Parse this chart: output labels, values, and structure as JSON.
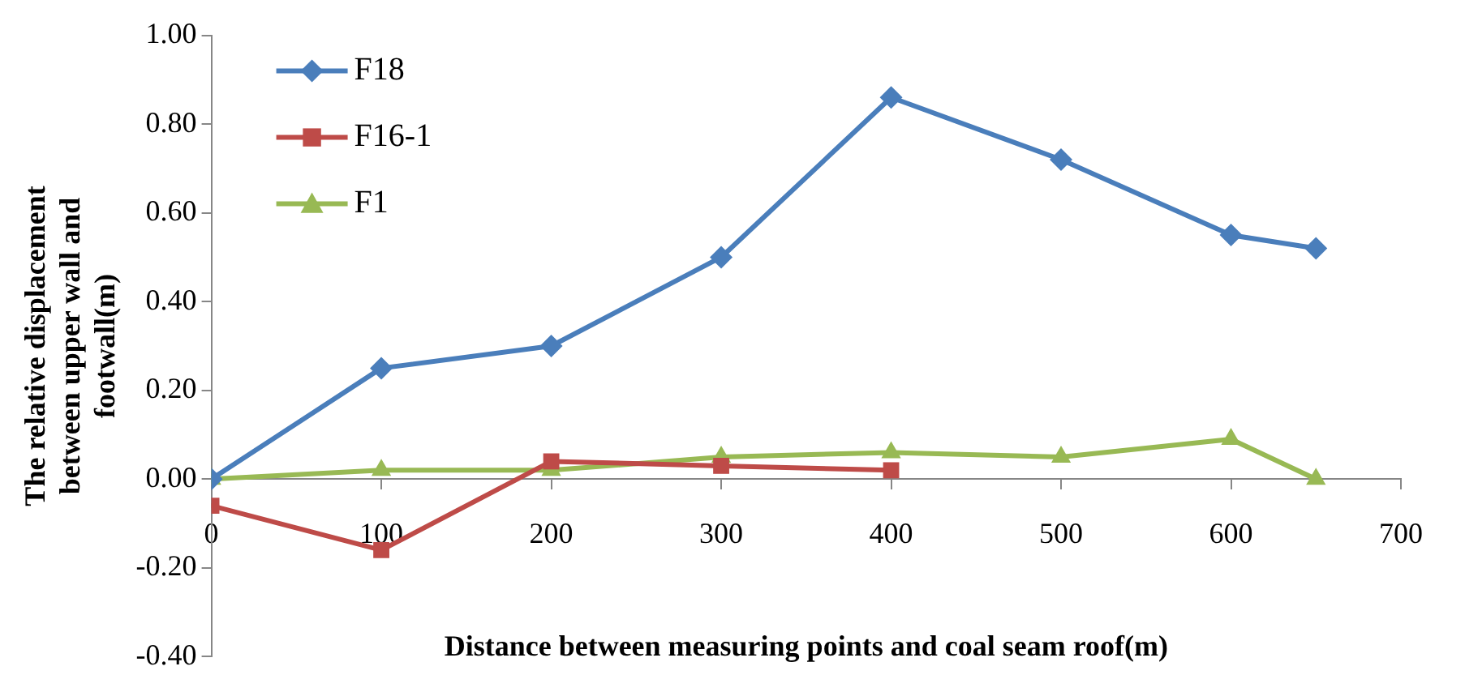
{
  "chart_data": {
    "type": "line",
    "xlabel": "Distance between measuring points and coal seam roof(m)",
    "ylabel": "The relative displacement between upper wall and footwall(m)",
    "x": [
      0,
      100,
      200,
      300,
      400,
      500,
      600,
      650
    ],
    "series": [
      {
        "name": "F18",
        "color": "#4a7ebb",
        "marker": "diamond",
        "values": [
          0,
          0.25,
          0.3,
          0.5,
          0.86,
          0.72,
          0.55,
          0.52
        ]
      },
      {
        "name": "F16-1",
        "color": "#be4b48",
        "marker": "square",
        "values": [
          -0.06,
          -0.16,
          0.04,
          0.03,
          0.02,
          null,
          null,
          null
        ]
      },
      {
        "name": "F1",
        "color": "#98b954",
        "marker": "triangle",
        "values": [
          0,
          0.02,
          0.02,
          0.05,
          0.06,
          0.05,
          0.09,
          0
        ]
      }
    ],
    "xlim": [
      0,
      700
    ],
    "xticks": [
      0,
      100,
      200,
      300,
      400,
      500,
      600,
      700
    ],
    "ylim": [
      -0.4,
      1.0
    ],
    "yticks": [
      {
        "value": -0.4,
        "label": "-0.40"
      },
      {
        "value": -0.2,
        "label": "-0.20"
      },
      {
        "value": 0,
        "label": "0.00"
      },
      {
        "value": 0.2,
        "label": "0.20"
      },
      {
        "value": 0.4,
        "label": "0.40"
      },
      {
        "value": 0.6,
        "label": "0.60"
      },
      {
        "value": 0.8,
        "label": "0.80"
      },
      {
        "value": 1.0,
        "label": "1.00"
      }
    ],
    "grid": false,
    "legend": "top left",
    "line_style": "solid"
  }
}
